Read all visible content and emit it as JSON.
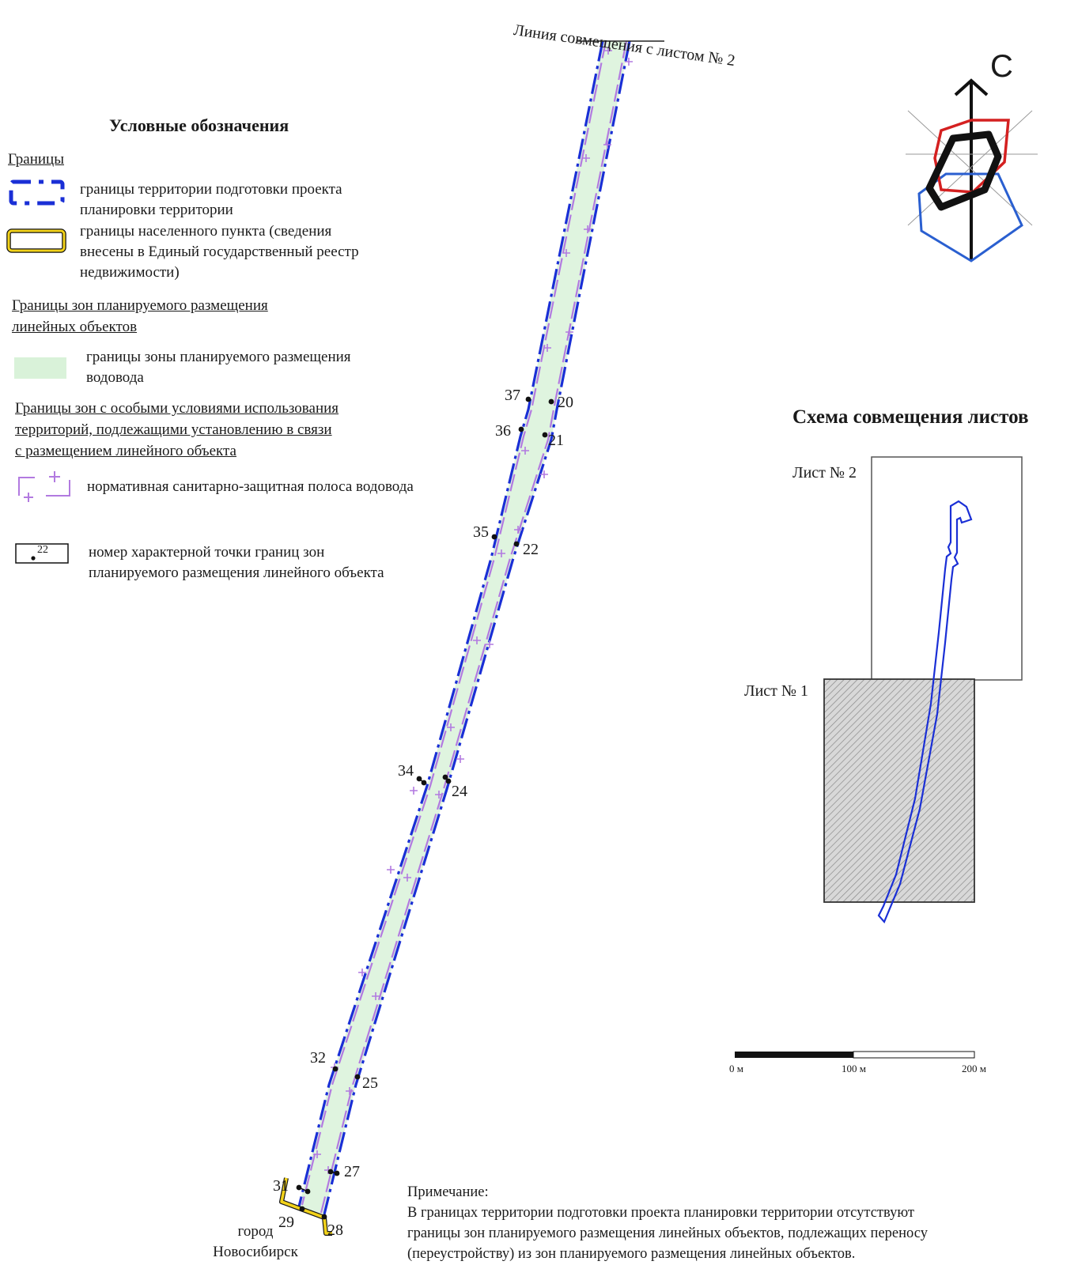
{
  "map": {
    "join_line_label": "Линия совмещения с листом № 2",
    "points": [
      {
        "label": "20"
      },
      {
        "label": "21"
      },
      {
        "label": "22"
      },
      {
        "label": "24"
      },
      {
        "label": "25"
      },
      {
        "label": "27"
      },
      {
        "label": "28"
      },
      {
        "label": "29"
      },
      {
        "label": "31"
      },
      {
        "label": "32"
      },
      {
        "label": "34"
      },
      {
        "label": "35"
      },
      {
        "label": "36"
      },
      {
        "label": "37"
      }
    ],
    "city_label": [
      "город",
      "Новосибирск"
    ]
  },
  "compass": {
    "north_label": "С"
  },
  "legend": {
    "title": "Условные обозначения",
    "section_boundaries": "Границы",
    "item_territory": [
      "границы территории подготовки проекта",
      "планировки территории"
    ],
    "item_settlement": [
      "границы населенного пункта (сведения",
      "внесены в Единый государственный реестр",
      "недвижимости)"
    ],
    "section_zones": [
      "Границы зон планируемого размещения",
      "линейных объектов"
    ],
    "item_water_zone": [
      "границы зоны планируемого размещения",
      "водовода"
    ],
    "section_special": [
      "Границы зон с особыми условиями использования",
      "территорий, подлежащими установлению в связи",
      "с размещением линейного объекта"
    ],
    "item_sanitary": "нормативная санитарно-защитная полоса водовода",
    "item_point_sample": "22",
    "item_point": [
      "номер характерной точки границ зон",
      "планируемого размещения линейного объекта"
    ]
  },
  "scheme": {
    "title": "Схема совмещения листов",
    "sheet2": "Лист № 2",
    "sheet1": "Лист № 1"
  },
  "scale": {
    "ticks": [
      "0 м",
      "100 м",
      "200 м"
    ]
  },
  "note": {
    "title": "Примечание:",
    "lines": [
      "В границах территории подготовки проекта планировки территории отсутствуют",
      "границы зон планируемого размещения линейных объектов, подлежащих переносу",
      "(переустройству) из зон планируемого размещения линейных объектов."
    ]
  },
  "colors": {
    "territory_boundary": "#1a2fd6",
    "settlement_boundary": "#f2d21a",
    "water_zone_fill": "#d9f2d9",
    "sanitary_line": "#b27ae0",
    "compass_red": "#d42020",
    "compass_blue": "#2a5fd0"
  }
}
